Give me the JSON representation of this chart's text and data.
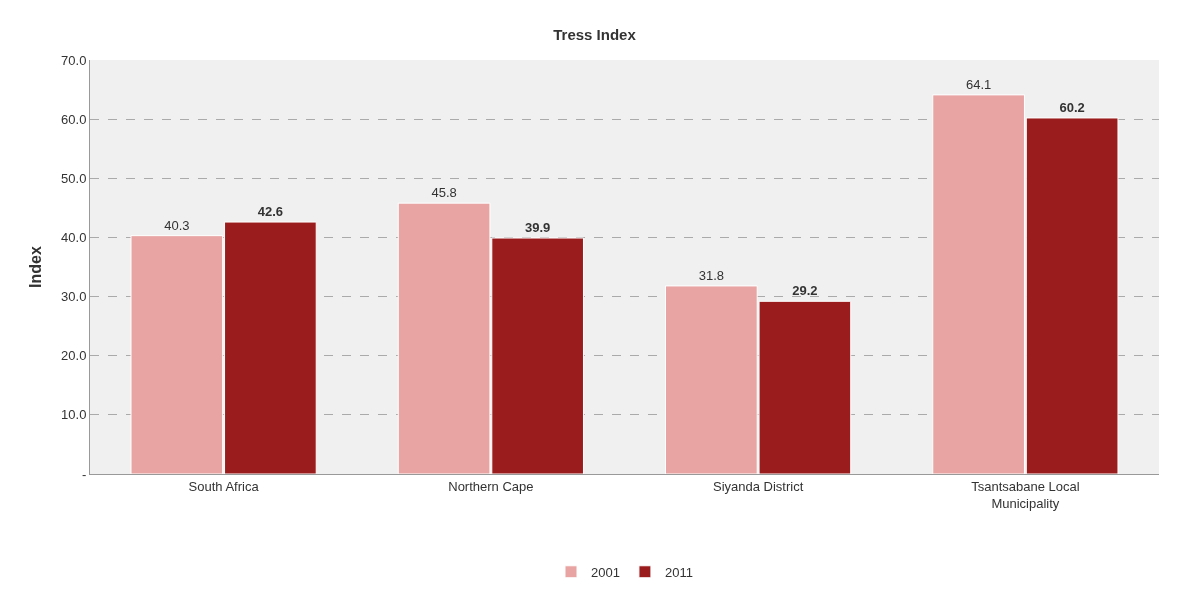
{
  "chart_data": {
    "type": "bar",
    "title": "Tress Index",
    "ylabel": "Index",
    "categories": [
      "South Africa",
      "Northern Cape",
      "Siyanda District",
      "Tsantsabane Local Municipality"
    ],
    "series": [
      {
        "name": "2001",
        "color": "#e8a3a3",
        "values": [
          40.3,
          45.8,
          31.8,
          64.1
        ]
      },
      {
        "name": "2011",
        "color": "#9b1c1c",
        "values": [
          42.6,
          39.9,
          29.2,
          60.2
        ]
      }
    ],
    "ylim": [
      0,
      70
    ],
    "yticks": [
      {
        "value": 0,
        "label": "-"
      },
      {
        "value": 10,
        "label": "10.0"
      },
      {
        "value": 20,
        "label": "20.0"
      },
      {
        "value": 30,
        "label": "30.0"
      },
      {
        "value": 40,
        "label": "40.0"
      },
      {
        "value": 50,
        "label": "50.0"
      },
      {
        "value": 60,
        "label": "60.0"
      },
      {
        "value": 70,
        "label": "70.0"
      }
    ],
    "grid": "y",
    "legend": "bottom",
    "data_labels": true
  }
}
